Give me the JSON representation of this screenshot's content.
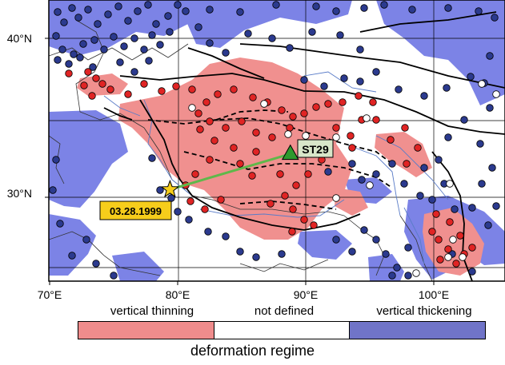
{
  "map": {
    "latitude_labels": [
      "40°N",
      "30°N"
    ],
    "longitude_labels": [
      "70°E",
      "80°E",
      "90°E",
      "100°E"
    ],
    "station": {
      "name": "ST29",
      "lon": 88.8,
      "lat": 32.8
    },
    "event": {
      "date": "03.28.1999",
      "lon": 79.4,
      "lat": 30.5
    },
    "colors": {
      "thinning": "#f0908f",
      "thickening": "#7c83e6",
      "red_dot": "#e02424",
      "blue_dot": "#2b3a8e",
      "ray_path": "#5fb84a",
      "station": "#2e9a2e",
      "event_star": "#f6cd1b"
    }
  },
  "legend": {
    "categories": [
      {
        "label": "vertical thinning",
        "color": "#ef8c8c"
      },
      {
        "label": "not defined",
        "color": "#ffffff"
      },
      {
        "label": "vertical thickening",
        "color": "#7074c8"
      }
    ],
    "title": "deformation regime"
  }
}
